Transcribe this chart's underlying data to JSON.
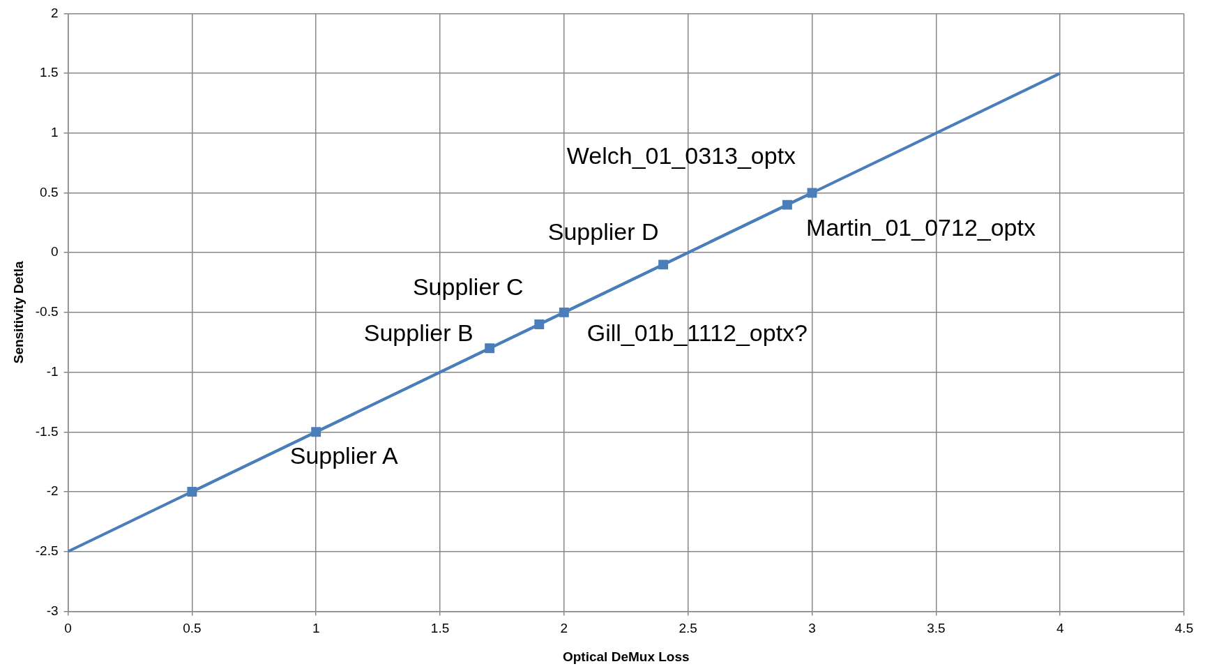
{
  "chart_data": {
    "type": "line",
    "xlabel": "Optical DeMux Loss",
    "ylabel": "Sensitivity Detla",
    "xlim": [
      0,
      4.5
    ],
    "xticks": [
      0,
      0.5,
      1,
      1.5,
      2,
      2.5,
      3,
      3.5,
      4,
      4.5
    ],
    "ylim": [
      -3,
      2
    ],
    "yticks": [
      -3,
      -2.5,
      -2,
      -1.5,
      -1,
      -0.5,
      0,
      0.5,
      1,
      1.5,
      2
    ],
    "grid": true,
    "legend": false,
    "series": [
      {
        "marker": "none",
        "color": "#4a7ebb",
        "x": [
          0,
          4
        ],
        "values": [
          -2.5,
          1.5
        ]
      },
      {
        "marker": "square",
        "color": "#4a7ebb",
        "x": [
          0.5,
          1,
          1.7,
          1.9,
          2,
          2.4,
          2.9,
          3
        ],
        "values": [
          -2,
          -1.5,
          -0.8,
          -0.6,
          -0.5,
          -0.1,
          0.4,
          0.5
        ]
      }
    ],
    "annotations": [
      {
        "text": "Supplier A",
        "x": 1,
        "y": -1.5
      },
      {
        "text": "Supplier B",
        "x": 1.7,
        "y": -0.8
      },
      {
        "text": "Supplier C",
        "x": 1.9,
        "y": -0.6
      },
      {
        "text": "Gill_01b_1112_optx?",
        "x": 2,
        "y": -0.5
      },
      {
        "text": "Supplier D",
        "x": 2.4,
        "y": -0.1
      },
      {
        "text": "Welch_01_0313_optx",
        "x": 2.9,
        "y": 0.4
      },
      {
        "text": "Martin_01_0712_optx",
        "x": 3,
        "y": 0.5
      }
    ]
  }
}
